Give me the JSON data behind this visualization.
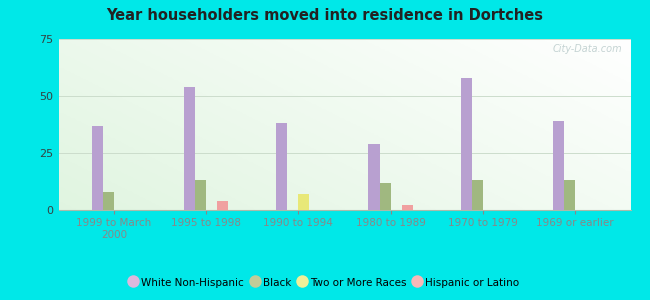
{
  "title": "Year householders moved into residence in Dortches",
  "categories": [
    "1999 to March\n2000",
    "1995 to 1998",
    "1990 to 1994",
    "1980 to 1989",
    "1970 to 1979",
    "1969 or earlier"
  ],
  "series": {
    "White Non-Hispanic": [
      37,
      54,
      38,
      29,
      58,
      39
    ],
    "Black": [
      8,
      13,
      0,
      12,
      13,
      13
    ],
    "Two or More Races": [
      0,
      0,
      7,
      0,
      0,
      0
    ],
    "Hispanic or Latino": [
      0,
      4,
      0,
      2,
      0,
      0
    ]
  },
  "colors": {
    "White Non-Hispanic": "#b8a0d0",
    "Black": "#a0b880",
    "Two or More Races": "#e8e878",
    "Hispanic or Latino": "#f0a0a0"
  },
  "legend_colors": {
    "White Non-Hispanic": "#ddb8dd",
    "Black": "#c0cc98",
    "Two or More Races": "#f0f098",
    "Hispanic or Latino": "#f8b8b8"
  },
  "ylim": [
    0,
    75
  ],
  "yticks": [
    0,
    25,
    50,
    75
  ],
  "background_color": "#00e8e8",
  "bar_width": 0.12,
  "group_width": 1.0
}
